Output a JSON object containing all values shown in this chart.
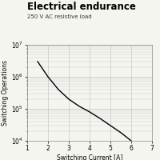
{
  "title": "Electrical endurance",
  "subtitle": "250 V AC resistive load",
  "xlabel": "Switching Current [A]",
  "ylabel": "Switching Operations",
  "xlim": [
    1,
    7
  ],
  "ylim": [
    10000.0,
    10000000.0
  ],
  "x_ticks": [
    1,
    2,
    3,
    4,
    5,
    6,
    7
  ],
  "curve_x": [
    1.5,
    2.0,
    2.5,
    3.0,
    3.5,
    4.0,
    4.5,
    5.0,
    5.5,
    6.0
  ],
  "curve_y": [
    3000000,
    1000000,
    400000,
    200000,
    120000,
    80000,
    50000,
    30000,
    18000,
    10000
  ],
  "line_color": "#000000",
  "grid_color": "#c8c8c8",
  "bg_color": "#f5f5f0",
  "title_fontsize": 8.5,
  "subtitle_fontsize": 5.0,
  "axis_label_fontsize": 5.5,
  "tick_fontsize": 5.5
}
